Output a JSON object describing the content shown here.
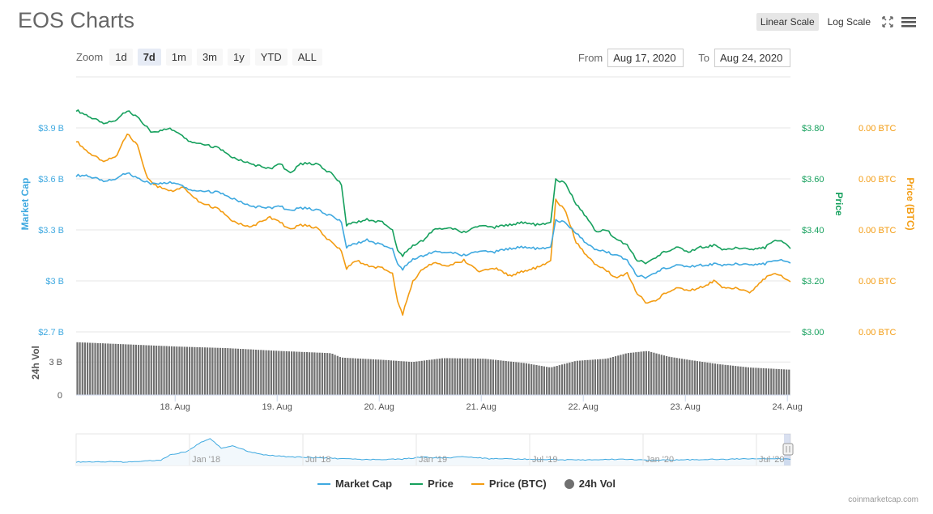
{
  "page": {
    "title": "EOS Charts",
    "credit": "coinmarketcap.com"
  },
  "scale_controls": {
    "linear_label": "Linear Scale",
    "log_label": "Log Scale",
    "active": "linear"
  },
  "zoom": {
    "label": "Zoom",
    "buttons": [
      "1d",
      "7d",
      "1m",
      "3m",
      "1y",
      "YTD",
      "ALL"
    ],
    "active": "7d"
  },
  "range": {
    "from_label": "From",
    "from_value": "Aug 17, 2020",
    "to_label": "To",
    "to_value": "Aug 24, 2020"
  },
  "colors": {
    "market_cap": "#3fa9e0",
    "price": "#16a05d",
    "price_btc": "#f39c12",
    "volume": "#707070",
    "grid": "#e6e6e6"
  },
  "legend": [
    {
      "name": "Market Cap",
      "color": "#3fa9e0",
      "kind": "line"
    },
    {
      "name": "Price",
      "color": "#16a05d",
      "kind": "line"
    },
    {
      "name": "Price (BTC)",
      "color": "#f39c12",
      "kind": "line"
    },
    {
      "name": "24h Vol",
      "color": "#707070",
      "kind": "dot"
    }
  ],
  "chart_data": [
    {
      "type": "line",
      "title": "",
      "x_axis": {
        "ticks": [
          {
            "label": "18. Aug",
            "t": 0.97
          },
          {
            "label": "19. Aug",
            "t": 1.97
          },
          {
            "label": "20. Aug",
            "t": 2.97
          },
          {
            "label": "21. Aug",
            "t": 3.97
          },
          {
            "label": "22. Aug",
            "t": 4.97
          },
          {
            "label": "23. Aug",
            "t": 5.97
          },
          {
            "label": "24. Aug",
            "t": 6.97
          }
        ],
        "range_days": [
          0,
          7
        ]
      },
      "axes": {
        "market_cap": {
          "label": "Market Cap",
          "ticks": [
            "$2.7 B",
            "$3 B",
            "$3.3 B",
            "$3.6 B",
            "$3.9 B"
          ],
          "range": [
            2.7,
            3.9
          ],
          "unit": "B USD"
        },
        "price": {
          "label": "Price",
          "ticks": [
            "$3.00",
            "$3.20",
            "$3.40",
            "$3.60",
            "$3.80"
          ],
          "range": [
            3.0,
            3.8
          ]
        },
        "price_btc": {
          "label": "Price (BTC)",
          "ticks": [
            "0.00 BTC",
            "0.00 BTC",
            "0.00 BTC",
            "0.00 BTC",
            "0.00 BTC"
          ],
          "range": [
            0.000255,
            0.000335
          ]
        }
      },
      "series": [
        {
          "name": "Price",
          "axis": "price",
          "points": [
            [
              0,
              3.87
            ],
            [
              0.1,
              3.85
            ],
            [
              0.25,
              3.82
            ],
            [
              0.4,
              3.83
            ],
            [
              0.5,
              3.87
            ],
            [
              0.6,
              3.84
            ],
            [
              0.75,
              3.78
            ],
            [
              0.9,
              3.8
            ],
            [
              1.0,
              3.78
            ],
            [
              1.1,
              3.75
            ],
            [
              1.2,
              3.74
            ],
            [
              1.4,
              3.72
            ],
            [
              1.55,
              3.68
            ],
            [
              1.7,
              3.66
            ],
            [
              1.9,
              3.64
            ],
            [
              2.0,
              3.66
            ],
            [
              2.1,
              3.62
            ],
            [
              2.2,
              3.66
            ],
            [
              2.35,
              3.66
            ],
            [
              2.5,
              3.62
            ],
            [
              2.6,
              3.58
            ],
            [
              2.65,
              3.42
            ],
            [
              2.75,
              3.43
            ],
            [
              2.85,
              3.44
            ],
            [
              3.0,
              3.43
            ],
            [
              3.1,
              3.4
            ],
            [
              3.15,
              3.32
            ],
            [
              3.2,
              3.3
            ],
            [
              3.3,
              3.34
            ],
            [
              3.4,
              3.36
            ],
            [
              3.5,
              3.4
            ],
            [
              3.65,
              3.41
            ],
            [
              3.8,
              3.39
            ],
            [
              3.95,
              3.42
            ],
            [
              4.1,
              3.41
            ],
            [
              4.25,
              3.42
            ],
            [
              4.4,
              3.43
            ],
            [
              4.5,
              3.42
            ],
            [
              4.65,
              3.43
            ],
            [
              4.7,
              3.6
            ],
            [
              4.8,
              3.58
            ],
            [
              4.9,
              3.5
            ],
            [
              5.0,
              3.45
            ],
            [
              5.1,
              3.39
            ],
            [
              5.2,
              3.4
            ],
            [
              5.3,
              3.36
            ],
            [
              5.4,
              3.34
            ],
            [
              5.5,
              3.28
            ],
            [
              5.6,
              3.27
            ],
            [
              5.7,
              3.3
            ],
            [
              5.8,
              3.32
            ],
            [
              5.9,
              3.33
            ],
            [
              6.0,
              3.31
            ],
            [
              6.1,
              3.33
            ],
            [
              6.25,
              3.34
            ],
            [
              6.35,
              3.32
            ],
            [
              6.5,
              3.33
            ],
            [
              6.6,
              3.32
            ],
            [
              6.75,
              3.33
            ],
            [
              6.85,
              3.36
            ],
            [
              6.95,
              3.35
            ],
            [
              7.0,
              3.33
            ]
          ]
        },
        {
          "name": "Market Cap",
          "axis": "market_cap",
          "points": [
            [
              0,
              3.62
            ],
            [
              0.1,
              3.62
            ],
            [
              0.25,
              3.59
            ],
            [
              0.4,
              3.6
            ],
            [
              0.5,
              3.64
            ],
            [
              0.6,
              3.6
            ],
            [
              0.75,
              3.57
            ],
            [
              0.9,
              3.58
            ],
            [
              1.0,
              3.57
            ],
            [
              1.1,
              3.54
            ],
            [
              1.2,
              3.53
            ],
            [
              1.4,
              3.52
            ],
            [
              1.55,
              3.48
            ],
            [
              1.7,
              3.44
            ],
            [
              1.9,
              3.43
            ],
            [
              2.0,
              3.44
            ],
            [
              2.1,
              3.41
            ],
            [
              2.2,
              3.43
            ],
            [
              2.35,
              3.42
            ],
            [
              2.5,
              3.38
            ],
            [
              2.6,
              3.35
            ],
            [
              2.65,
              3.2
            ],
            [
              2.75,
              3.22
            ],
            [
              2.85,
              3.24
            ],
            [
              3.0,
              3.21
            ],
            [
              3.1,
              3.19
            ],
            [
              3.15,
              3.1
            ],
            [
              3.2,
              3.07
            ],
            [
              3.3,
              3.13
            ],
            [
              3.4,
              3.15
            ],
            [
              3.5,
              3.17
            ],
            [
              3.65,
              3.17
            ],
            [
              3.8,
              3.15
            ],
            [
              3.95,
              3.18
            ],
            [
              4.1,
              3.17
            ],
            [
              4.25,
              3.19
            ],
            [
              4.4,
              3.2
            ],
            [
              4.5,
              3.19
            ],
            [
              4.65,
              3.2
            ],
            [
              4.7,
              3.36
            ],
            [
              4.8,
              3.34
            ],
            [
              4.9,
              3.28
            ],
            [
              5.0,
              3.22
            ],
            [
              5.1,
              3.18
            ],
            [
              5.2,
              3.17
            ],
            [
              5.3,
              3.15
            ],
            [
              5.4,
              3.12
            ],
            [
              5.5,
              3.03
            ],
            [
              5.6,
              3.02
            ],
            [
              5.7,
              3.06
            ],
            [
              5.8,
              3.08
            ],
            [
              5.9,
              3.09
            ],
            [
              6.0,
              3.08
            ],
            [
              6.1,
              3.09
            ],
            [
              6.25,
              3.1
            ],
            [
              6.35,
              3.09
            ],
            [
              6.5,
              3.1
            ],
            [
              6.6,
              3.09
            ],
            [
              6.75,
              3.1
            ],
            [
              6.85,
              3.12
            ],
            [
              6.95,
              3.12
            ],
            [
              7.0,
              3.11
            ]
          ]
        },
        {
          "name": "Price (BTC)",
          "axis": "price_btc",
          "points": [
            [
              0,
              0.00033
            ],
            [
              0.1,
              0.000326
            ],
            [
              0.25,
              0.000322
            ],
            [
              0.4,
              0.000324
            ],
            [
              0.5,
              0.000333
            ],
            [
              0.6,
              0.000328
            ],
            [
              0.7,
              0.000315
            ],
            [
              0.8,
              0.000312
            ],
            [
              0.95,
              0.00031
            ],
            [
              1.05,
              0.000312
            ],
            [
              1.2,
              0.000306
            ],
            [
              1.4,
              0.000303
            ],
            [
              1.55,
              0.000298
            ],
            [
              1.7,
              0.000296
            ],
            [
              1.9,
              0.0003
            ],
            [
              2.0,
              0.000298
            ],
            [
              2.1,
              0.000295
            ],
            [
              2.2,
              0.000297
            ],
            [
              2.35,
              0.000296
            ],
            [
              2.5,
              0.00029
            ],
            [
              2.6,
              0.000287
            ],
            [
              2.65,
              0.00028
            ],
            [
              2.75,
              0.000283
            ],
            [
              2.85,
              0.000281
            ],
            [
              3.0,
              0.00028
            ],
            [
              3.1,
              0.000278
            ],
            [
              3.15,
              0.000267
            ],
            [
              3.2,
              0.000262
            ],
            [
              3.3,
              0.000275
            ],
            [
              3.4,
              0.00028
            ],
            [
              3.5,
              0.000282
            ],
            [
              3.65,
              0.000281
            ],
            [
              3.8,
              0.000283
            ],
            [
              3.95,
              0.000279
            ],
            [
              4.1,
              0.00028
            ],
            [
              4.25,
              0.000277
            ],
            [
              4.4,
              0.000279
            ],
            [
              4.5,
              0.00028
            ],
            [
              4.65,
              0.000283
            ],
            [
              4.7,
              0.000307
            ],
            [
              4.8,
              0.000302
            ],
            [
              4.9,
              0.00029
            ],
            [
              5.0,
              0.000285
            ],
            [
              5.1,
              0.000281
            ],
            [
              5.2,
              0.000279
            ],
            [
              5.3,
              0.000276
            ],
            [
              5.4,
              0.000278
            ],
            [
              5.5,
              0.00027
            ],
            [
              5.6,
              0.000266
            ],
            [
              5.7,
              0.000268
            ],
            [
              5.8,
              0.000271
            ],
            [
              5.9,
              0.000272
            ],
            [
              6.0,
              0.000271
            ],
            [
              6.1,
              0.000272
            ],
            [
              6.25,
              0.000275
            ],
            [
              6.35,
              0.000272
            ],
            [
              6.5,
              0.000272
            ],
            [
              6.6,
              0.00027
            ],
            [
              6.75,
              0.000276
            ],
            [
              6.85,
              0.000278
            ],
            [
              6.95,
              0.000276
            ],
            [
              7.0,
              0.000275
            ]
          ]
        }
      ]
    },
    {
      "type": "bar",
      "title": "",
      "axis": {
        "label": "24h Vol",
        "ticks": [
          "0",
          "3 B"
        ],
        "range": [
          0,
          5
        ]
      },
      "series": [
        {
          "name": "24h Vol",
          "points": [
            [
              0,
              4.8
            ],
            [
              0.5,
              4.6
            ],
            [
              1.0,
              4.4
            ],
            [
              1.5,
              4.25
            ],
            [
              2.0,
              4.0
            ],
            [
              2.5,
              3.8
            ],
            [
              2.6,
              3.4
            ],
            [
              3.0,
              3.2
            ],
            [
              3.3,
              3.0
            ],
            [
              3.6,
              3.35
            ],
            [
              4.0,
              3.3
            ],
            [
              4.4,
              2.9
            ],
            [
              4.65,
              2.5
            ],
            [
              4.9,
              3.1
            ],
            [
              5.2,
              3.3
            ],
            [
              5.4,
              3.8
            ],
            [
              5.6,
              4.0
            ],
            [
              5.8,
              3.5
            ],
            [
              6.0,
              3.2
            ],
            [
              6.3,
              2.8
            ],
            [
              6.6,
              2.5
            ],
            [
              7.0,
              2.3
            ]
          ]
        }
      ]
    },
    {
      "type": "area",
      "title": "",
      "x_axis": {
        "ticks": [
          "Jan '18",
          "Jul '18",
          "Jan '19",
          "Jul '19",
          "Jan '20",
          "Jul '20"
        ]
      },
      "series": [
        {
          "name": "Price",
          "points": [
            [
              0,
              1.2
            ],
            [
              0.1,
              1.3
            ],
            [
              0.2,
              1.2
            ],
            [
              0.3,
              1.6
            ],
            [
              0.38,
              2.5
            ],
            [
              0.42,
              5.5
            ],
            [
              0.5,
              8.0
            ],
            [
              0.55,
              13.0
            ],
            [
              0.6,
              16.0
            ],
            [
              0.65,
              10.0
            ],
            [
              0.7,
              11.5
            ],
            [
              0.78,
              7.5
            ],
            [
              0.85,
              5.5
            ],
            [
              0.95,
              4.5
            ],
            [
              1.05,
              4.0
            ],
            [
              1.15,
              3.5
            ],
            [
              1.3,
              2.6
            ],
            [
              1.45,
              2.9
            ],
            [
              1.55,
              4.2
            ],
            [
              1.65,
              3.6
            ],
            [
              1.75,
              4.6
            ],
            [
              1.85,
              3.2
            ],
            [
              2.0,
              3.0
            ],
            [
              2.15,
              2.6
            ],
            [
              2.3,
              2.5
            ],
            [
              2.45,
              3.0
            ],
            [
              2.6,
              2.3
            ],
            [
              2.75,
              2.6
            ],
            [
              2.9,
              2.9
            ],
            [
              3.05,
              3.4
            ],
            [
              3.2,
              3.0
            ]
          ]
        }
      ]
    }
  ]
}
